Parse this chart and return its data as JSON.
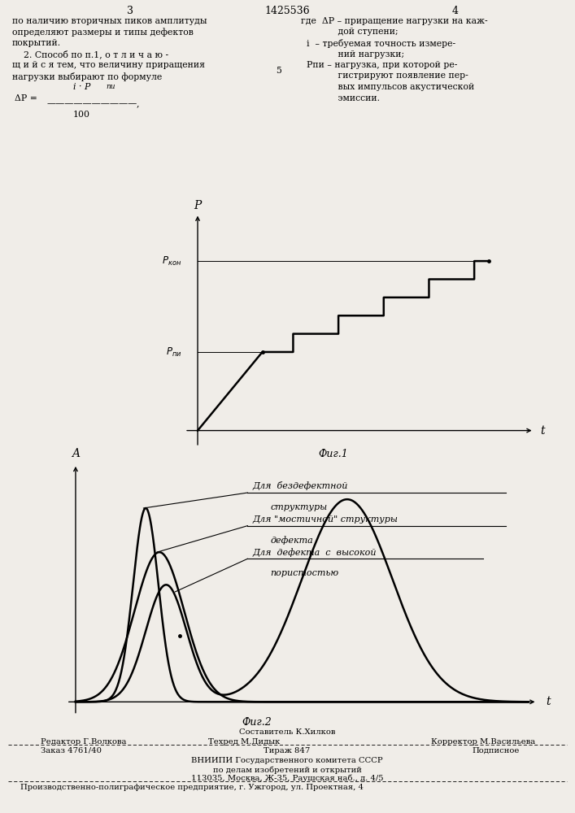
{
  "page_number_left": "3",
  "page_number_center": "1425536",
  "page_number_right": "4",
  "fig1_label": "Фиг.1",
  "fig2_label": "Фиг.2",
  "fig1_ylabel": "P",
  "fig1_xlabel": "t",
  "fig2_ylabel": "A",
  "fig2_xlabel": "t",
  "fig1_P_kon_label": "P_кон",
  "fig1_P_pi_label": "P_пи",
  "bg_color": "#f0ede8",
  "line_color": "#000000",
  "text_color": "#000000",
  "fig1_P_pi": 0.38,
  "fig1_P_kon": 0.82,
  "footer_editor": "Редактор Г.Волкова",
  "footer_composer": "Составитель К.Хилков",
  "footer_tech": "Техред М.Дидык",
  "footer_corrector": "Корректор М.Васильева",
  "footer_order": "Заказ 4761/40",
  "footer_tirazh": "Тираж 847",
  "footer_podp": "Подписное",
  "footer_org1": "ВНИИПИ Государственного комитета СССР",
  "footer_org2": "по делам изобретений и открытий",
  "footer_addr": "113035, Москва, Ж-35, Раушская наб., д. 4/5",
  "footer_prod": "Производственно-полиграфическое предприятие, г. Ужгород, ул. Проектная, 4"
}
